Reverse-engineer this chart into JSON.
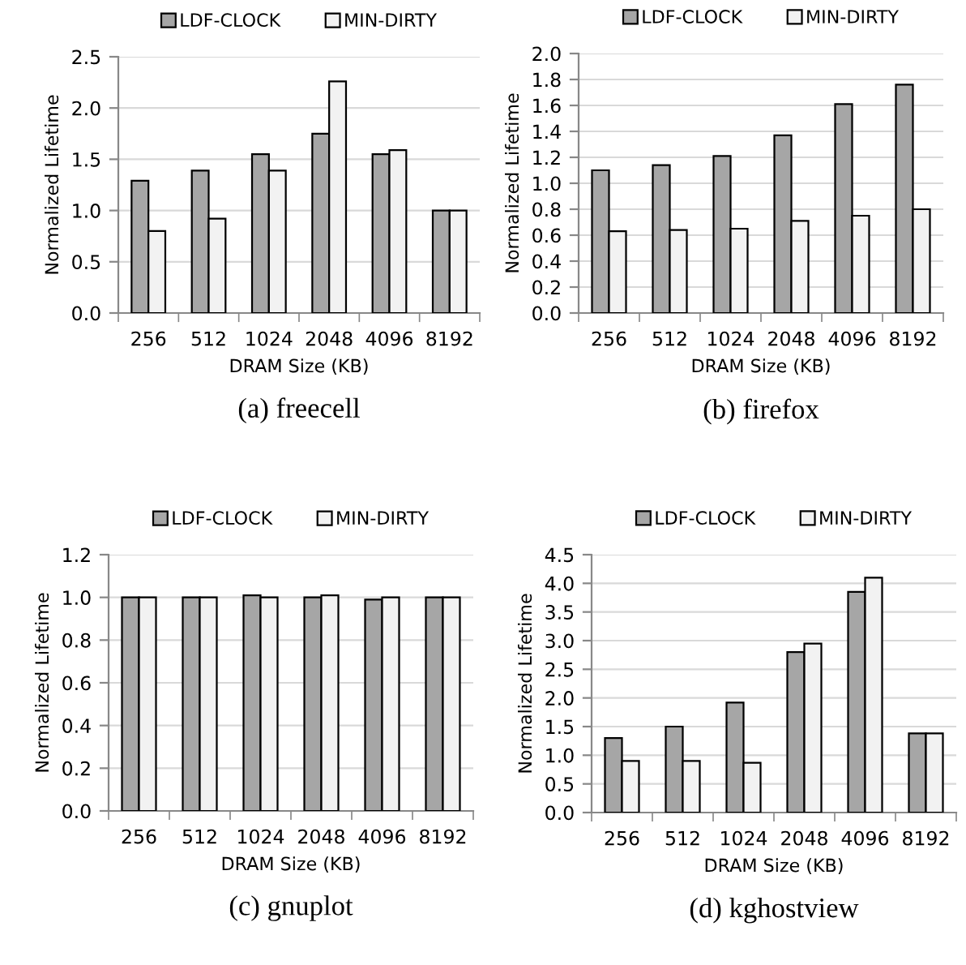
{
  "chart_data": [
    {
      "type": "bar",
      "title": "(a) freecell",
      "xlabel": "DRAM Size (KB)",
      "ylabel": "Normalized Lifetime",
      "categories": [
        "256",
        "512",
        "1024",
        "2048",
        "4096",
        "8192"
      ],
      "series": [
        {
          "name": "LDF-CLOCK",
          "color": "#a6a6a6",
          "values": [
            1.29,
            1.39,
            1.55,
            1.75,
            1.55,
            1.0
          ]
        },
        {
          "name": "MIN-DIRTY",
          "color": "#f2f2f2",
          "values": [
            0.8,
            0.92,
            1.39,
            2.26,
            1.59,
            1.0
          ]
        }
      ],
      "ylim": [
        0,
        2.5
      ],
      "yticks": [
        {
          "value": 0,
          "label": "0.0"
        },
        {
          "value": 0.5,
          "label": "0.5"
        },
        {
          "value": 1,
          "label": "1.0"
        },
        {
          "value": 1.5,
          "label": "1.5"
        },
        {
          "value": 2,
          "label": "2.0"
        },
        {
          "value": 2.5,
          "label": "2.5"
        }
      ],
      "grid": "y",
      "legend": "top"
    },
    {
      "type": "bar",
      "title": "(b) firefox",
      "xlabel": "DRAM Size (KB)",
      "ylabel": "Normalized Lifetime",
      "categories": [
        "256",
        "512",
        "1024",
        "2048",
        "4096",
        "8192"
      ],
      "series": [
        {
          "name": "LDF-CLOCK",
          "color": "#a6a6a6",
          "values": [
            1.1,
            1.14,
            1.21,
            1.37,
            1.61,
            1.76
          ]
        },
        {
          "name": "MIN-DIRTY",
          "color": "#f2f2f2",
          "values": [
            0.63,
            0.64,
            0.65,
            0.71,
            0.75,
            0.8
          ]
        }
      ],
      "ylim": [
        0,
        2.0
      ],
      "yticks": [
        {
          "value": 0,
          "label": "0.0"
        },
        {
          "value": 0.2,
          "label": "0.2"
        },
        {
          "value": 0.4,
          "label": "0.4"
        },
        {
          "value": 0.6,
          "label": "0.6"
        },
        {
          "value": 0.8,
          "label": "0.8"
        },
        {
          "value": 1,
          "label": "1.0"
        },
        {
          "value": 1.2,
          "label": "1.2"
        },
        {
          "value": 1.4,
          "label": "1.4"
        },
        {
          "value": 1.6,
          "label": "1.6"
        },
        {
          "value": 1.8,
          "label": "1.8"
        },
        {
          "value": 2,
          "label": "2.0"
        }
      ],
      "grid": "y",
      "legend": "top"
    },
    {
      "type": "bar",
      "title": "(c) gnuplot",
      "xlabel": "DRAM Size (KB)",
      "ylabel": "Normalized Lifetime",
      "categories": [
        "256",
        "512",
        "1024",
        "2048",
        "4096",
        "8192"
      ],
      "series": [
        {
          "name": "LDF-CLOCK",
          "color": "#a6a6a6",
          "values": [
            1.0,
            1.0,
            1.01,
            1.0,
            0.99,
            1.0
          ]
        },
        {
          "name": "MIN-DIRTY",
          "color": "#f2f2f2",
          "values": [
            1.0,
            1.0,
            1.0,
            1.01,
            1.0,
            1.0
          ]
        }
      ],
      "ylim": [
        0,
        1.2
      ],
      "yticks": [
        {
          "value": 0,
          "label": "0.0"
        },
        {
          "value": 0.2,
          "label": "0.2"
        },
        {
          "value": 0.4,
          "label": "0.4"
        },
        {
          "value": 0.6,
          "label": "0.6"
        },
        {
          "value": 0.8,
          "label": "0.8"
        },
        {
          "value": 1,
          "label": "1.0"
        },
        {
          "value": 1.2,
          "label": "1.2"
        }
      ],
      "grid": "y",
      "legend": "top"
    },
    {
      "type": "bar",
      "title": "(d) kghostview",
      "xlabel": "DRAM Size (KB)",
      "ylabel": "Normalized Lifetime",
      "categories": [
        "256",
        "512",
        "1024",
        "2048",
        "4096",
        "8192"
      ],
      "series": [
        {
          "name": "LDF-CLOCK",
          "color": "#a6a6a6",
          "values": [
            1.3,
            1.5,
            1.92,
            2.8,
            3.85,
            1.38
          ]
        },
        {
          "name": "MIN-DIRTY",
          "color": "#f2f2f2",
          "values": [
            0.9,
            0.9,
            0.87,
            2.95,
            4.1,
            1.38
          ]
        }
      ],
      "ylim": [
        0,
        4.5
      ],
      "yticks": [
        {
          "value": 0,
          "label": "0.0"
        },
        {
          "value": 0.5,
          "label": "0.5"
        },
        {
          "value": 1,
          "label": "1.0"
        },
        {
          "value": 1.5,
          "label": "1.5"
        },
        {
          "value": 2,
          "label": "2.0"
        },
        {
          "value": 2.5,
          "label": "2.5"
        },
        {
          "value": 3,
          "label": "3.0"
        },
        {
          "value": 3.5,
          "label": "3.5"
        },
        {
          "value": 4,
          "label": "4.0"
        },
        {
          "value": 4.5,
          "label": "4.5"
        }
      ],
      "grid": "y",
      "legend": "top"
    }
  ]
}
